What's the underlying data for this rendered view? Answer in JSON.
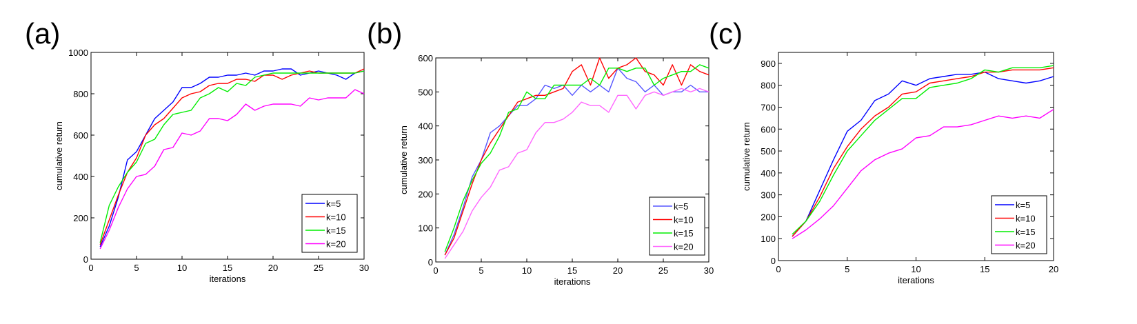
{
  "chart_data": [
    {
      "panel_label": "(a)",
      "type": "line",
      "xlabel": "iterations",
      "ylabel": "cumulative return",
      "xlim": [
        0,
        30
      ],
      "ylim": [
        0,
        1000
      ],
      "xticks": [
        0,
        5,
        10,
        15,
        20,
        25,
        30
      ],
      "yticks": [
        0,
        200,
        400,
        600,
        800,
        1000
      ],
      "grid": false,
      "legend": "bottom-right",
      "x": [
        1,
        2,
        3,
        4,
        5,
        6,
        7,
        8,
        9,
        10,
        11,
        12,
        13,
        14,
        15,
        16,
        17,
        18,
        19,
        20,
        21,
        22,
        23,
        24,
        25,
        26,
        27,
        28,
        29,
        30
      ],
      "series": [
        {
          "name": "k=5",
          "color": "#0000ff",
          "values": [
            60,
            160,
            300,
            480,
            520,
            600,
            680,
            720,
            760,
            830,
            830,
            850,
            880,
            880,
            890,
            890,
            900,
            890,
            910,
            910,
            920,
            920,
            890,
            900,
            910,
            900,
            890,
            870,
            900,
            910
          ]
        },
        {
          "name": "k=10",
          "color": "#ff0000",
          "values": [
            70,
            190,
            310,
            420,
            490,
            600,
            650,
            680,
            730,
            780,
            800,
            810,
            840,
            850,
            850,
            870,
            870,
            860,
            890,
            890,
            870,
            890,
            900,
            910,
            900,
            900,
            900,
            900,
            900,
            920
          ]
        },
        {
          "name": "k=15",
          "color": "#00ee00",
          "values": [
            80,
            260,
            350,
            420,
            470,
            560,
            580,
            650,
            700,
            710,
            720,
            780,
            800,
            830,
            810,
            850,
            840,
            880,
            890,
            900,
            900,
            900,
            900,
            900,
            900,
            900,
            900,
            900,
            900,
            910
          ]
        },
        {
          "name": "k=20",
          "color": "#ff00ff",
          "values": [
            50,
            140,
            250,
            340,
            400,
            410,
            450,
            530,
            540,
            610,
            600,
            620,
            680,
            680,
            670,
            700,
            750,
            720,
            740,
            750,
            750,
            750,
            740,
            780,
            770,
            780,
            780,
            780,
            820,
            800
          ]
        }
      ]
    },
    {
      "panel_label": "(b)",
      "type": "line",
      "xlabel": "iterations",
      "ylabel": "cumulative return",
      "xlim": [
        0,
        30
      ],
      "ylim": [
        0,
        600
      ],
      "xticks": [
        0,
        5,
        10,
        15,
        20,
        25,
        30
      ],
      "yticks": [
        0,
        100,
        200,
        300,
        400,
        500,
        600
      ],
      "grid": false,
      "legend": "bottom-right",
      "x": [
        1,
        2,
        3,
        4,
        5,
        6,
        7,
        8,
        9,
        10,
        11,
        12,
        13,
        14,
        15,
        16,
        17,
        18,
        19,
        20,
        21,
        22,
        23,
        24,
        25,
        26,
        27,
        28,
        29,
        30
      ],
      "series": [
        {
          "name": "k=5",
          "color": "#5555ff",
          "values": [
            20,
            80,
            160,
            250,
            300,
            380,
            400,
            430,
            460,
            460,
            480,
            520,
            510,
            520,
            490,
            520,
            500,
            520,
            500,
            570,
            540,
            530,
            500,
            520,
            490,
            500,
            500,
            520,
            500,
            500
          ]
        },
        {
          "name": "k=10",
          "color": "#ff0000",
          "values": [
            20,
            70,
            150,
            230,
            300,
            350,
            390,
            430,
            470,
            480,
            490,
            490,
            500,
            510,
            560,
            580,
            520,
            600,
            540,
            570,
            580,
            600,
            560,
            550,
            520,
            580,
            520,
            580,
            560,
            550
          ]
        },
        {
          "name": "k=15",
          "color": "#00ee00",
          "values": [
            30,
            100,
            180,
            240,
            290,
            320,
            370,
            440,
            450,
            500,
            480,
            480,
            520,
            520,
            520,
            520,
            540,
            520,
            570,
            570,
            560,
            570,
            570,
            520,
            540,
            550,
            560,
            560,
            580,
            570
          ]
        },
        {
          "name": "k=20",
          "color": "#ff66ff",
          "values": [
            10,
            50,
            90,
            150,
            190,
            220,
            270,
            280,
            320,
            330,
            380,
            410,
            410,
            420,
            440,
            470,
            460,
            460,
            440,
            490,
            490,
            450,
            490,
            500,
            490,
            500,
            510,
            500,
            510,
            500
          ]
        }
      ]
    },
    {
      "panel_label": "(c)",
      "type": "line",
      "xlabel": "iterations",
      "ylabel": "cumulative return",
      "xlim": [
        0,
        20
      ],
      "ylim": [
        0,
        950
      ],
      "xticks": [
        0,
        5,
        10,
        15,
        20
      ],
      "yticks": [
        0,
        100,
        200,
        300,
        400,
        500,
        600,
        700,
        800,
        900
      ],
      "grid": false,
      "legend": "bottom-right",
      "x": [
        1,
        2,
        3,
        4,
        5,
        6,
        7,
        8,
        9,
        10,
        11,
        12,
        13,
        14,
        15,
        16,
        17,
        18,
        19,
        20
      ],
      "series": [
        {
          "name": "k=5",
          "color": "#0000ff",
          "values": [
            110,
            180,
            320,
            460,
            590,
            640,
            730,
            760,
            820,
            800,
            830,
            840,
            850,
            850,
            860,
            830,
            820,
            810,
            820,
            840
          ]
        },
        {
          "name": "k=10",
          "color": "#ff0000",
          "values": [
            110,
            180,
            290,
            420,
            520,
            600,
            660,
            700,
            760,
            770,
            810,
            820,
            830,
            840,
            860,
            860,
            870,
            870,
            870,
            880
          ]
        },
        {
          "name": "k=15",
          "color": "#00ee00",
          "values": [
            120,
            180,
            270,
            390,
            500,
            570,
            640,
            690,
            740,
            740,
            790,
            800,
            810,
            830,
            870,
            860,
            880,
            880,
            880,
            890
          ]
        },
        {
          "name": "k=20",
          "color": "#ff00ff",
          "values": [
            100,
            140,
            190,
            250,
            330,
            410,
            460,
            490,
            510,
            560,
            570,
            610,
            610,
            620,
            640,
            660,
            650,
            660,
            650,
            690
          ]
        }
      ]
    }
  ]
}
